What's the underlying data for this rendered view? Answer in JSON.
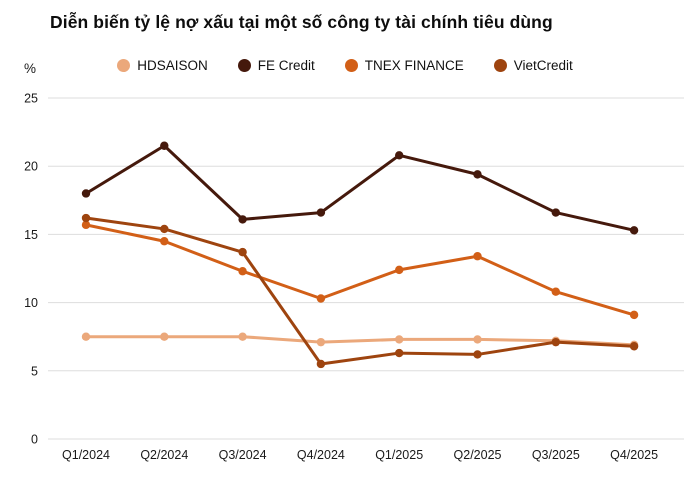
{
  "title": "Diễn biến tỷ lệ nợ xấu tại một số công ty tài chính tiêu dùng",
  "y_axis_unit": "%",
  "chart_data": {
    "type": "line",
    "title": "Diễn biến tỷ lệ nợ xấu tại một số công ty tài chính tiêu dùng",
    "ylabel": "%",
    "xlabel": "",
    "ylim": [
      0,
      25
    ],
    "yticks": [
      0,
      5,
      10,
      15,
      20,
      25
    ],
    "grid": true,
    "legend_position": "top",
    "categories": [
      "Q1/2024",
      "Q2/2024",
      "Q3/2024",
      "Q4/2024",
      "Q1/2025",
      "Q2/2025",
      "Q3/2025",
      "Q4/2025"
    ],
    "series": [
      {
        "name": "HDSAISON",
        "color": "#EBA87B",
        "values": [
          7.5,
          7.5,
          7.5,
          7.1,
          7.3,
          7.3,
          7.2,
          6.9
        ]
      },
      {
        "name": "FE Credit",
        "color": "#45190C",
        "values": [
          18.0,
          21.5,
          16.1,
          16.6,
          20.8,
          19.4,
          16.6,
          15.3
        ]
      },
      {
        "name": "TNEX FINANCE",
        "color": "#D25F17",
        "values": [
          15.7,
          14.5,
          12.3,
          10.3,
          12.4,
          13.4,
          10.8,
          9.1
        ]
      },
      {
        "name": "VietCredit",
        "color": "#9E440F",
        "values": [
          16.2,
          15.4,
          13.7,
          5.5,
          6.3,
          6.2,
          7.1,
          6.8
        ]
      }
    ]
  }
}
